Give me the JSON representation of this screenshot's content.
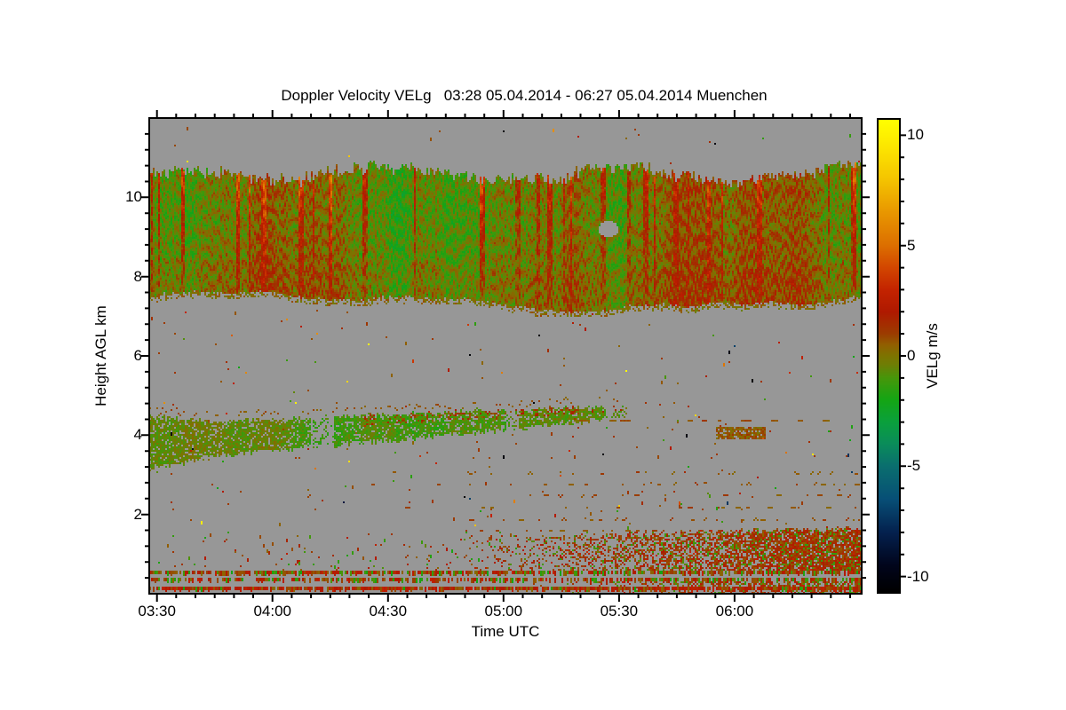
{
  "page": {
    "background": "#ffffff"
  },
  "chart_data": {
    "type": "heatmap",
    "title": "Doppler Velocity VELg   03:28 05.04.2014 - 06:27 05.04.2014 Muenchen",
    "xlabel": "Time UTC",
    "ylabel": "Height AGL km",
    "station": "Muenchen",
    "time_start": "03:28 05.04.2014",
    "time_end": "06:27 05.04.2014",
    "x_axis": {
      "total_minutes": 185,
      "minor_step_minutes": 5,
      "ticks": [
        {
          "label": "03:30",
          "minutes": 2
        },
        {
          "label": "04:00",
          "minutes": 32
        },
        {
          "label": "04:30",
          "minutes": 62
        },
        {
          "label": "05:00",
          "minutes": 92
        },
        {
          "label": "05:30",
          "minutes": 122
        },
        {
          "label": "06:00",
          "minutes": 152
        }
      ]
    },
    "y_axis": {
      "min_km": 0,
      "max_km": 12,
      "minor_step_km": 0.4,
      "ticks": [
        {
          "label": "2",
          "km": 2
        },
        {
          "label": "4",
          "km": 4
        },
        {
          "label": "6",
          "km": 6
        },
        {
          "label": "8",
          "km": 8
        },
        {
          "label": "10",
          "km": 10
        }
      ]
    },
    "colorbar": {
      "label": "VELg m/s",
      "min": -10.7,
      "max": 10.7,
      "minor_step": 1,
      "ticks": [
        {
          "label": "10",
          "value": 10
        },
        {
          "label": "5",
          "value": 5
        },
        {
          "label": "0",
          "value": 0
        },
        {
          "label": "-5",
          "value": -5
        },
        {
          "label": "-10",
          "value": -10
        }
      ],
      "stops": [
        [
          -10.7,
          "#000000"
        ],
        [
          -9.5,
          "#01051c"
        ],
        [
          -8.0,
          "#04214e"
        ],
        [
          -6.5,
          "#074f76"
        ],
        [
          -5.0,
          "#0a6e6e"
        ],
        [
          -4.0,
          "#0a8c5a"
        ],
        [
          -3.0,
          "#0aa03c"
        ],
        [
          -2.0,
          "#14a514"
        ],
        [
          -1.0,
          "#46960a"
        ],
        [
          -0.4,
          "#6e7d05"
        ],
        [
          0.0,
          "#7d7300"
        ],
        [
          0.5,
          "#915f00"
        ],
        [
          1.0,
          "#9b3c00"
        ],
        [
          2.0,
          "#af1900"
        ],
        [
          3.0,
          "#c32300"
        ],
        [
          4.0,
          "#d24600"
        ],
        [
          5.0,
          "#dc6e00"
        ],
        [
          6.5,
          "#e89600"
        ],
        [
          8.0,
          "#f4c300"
        ],
        [
          9.5,
          "#fce600"
        ],
        [
          10.7,
          "#ffff00"
        ]
      ]
    },
    "style": {
      "background": "#979797",
      "axis_color": "#000000",
      "text_color": "#000000"
    },
    "features": {
      "seed": 20140405,
      "cloud_band": {
        "top_mean": 10.38,
        "top_spike": 0.26,
        "bottom_mean": 7.42,
        "bottom_amp": 0.16,
        "base_vel": -0.35,
        "streak_prob": 0.085,
        "streak_min": 1.6,
        "streak_max": 4.8
      },
      "mid_layer": {
        "t_end": 0.67,
        "center_start": 3.82,
        "center_slope": 1.15,
        "vel_base": -0.55
      },
      "mid_patch": {
        "t0": 0.795,
        "t1": 0.865,
        "h0": 3.93,
        "h1": 4.18
      },
      "mid_dash_row": {
        "h": 4.37,
        "t_start": 0.6
      },
      "upper_dash_rows": [
        3.05,
        2.78,
        2.48,
        2.18,
        1.88,
        1.6
      ],
      "surface_rows": [
        {
          "h": 0.52,
          "p": 0.8,
          "w_red": 0.35,
          "w_green": 0.25
        },
        {
          "h": 0.33,
          "p": 0.72,
          "w_red": 0.3,
          "w_green": 0.25
        },
        {
          "h": 0.13,
          "p": 0.9,
          "w_red": 0.6,
          "w_green": 0.05
        }
      ],
      "low_dense": {
        "t_start": 0.42,
        "top_h_base": 1.4,
        "top_h_gain": 0.25,
        "lower_t_start": 0.53,
        "lower_h0": 0.04,
        "lower_h1": 0.3
      },
      "speckle_left_p": 0.035,
      "scatter_count": 950,
      "hole": {
        "t": 0.645,
        "h": 9.22
      }
    }
  }
}
